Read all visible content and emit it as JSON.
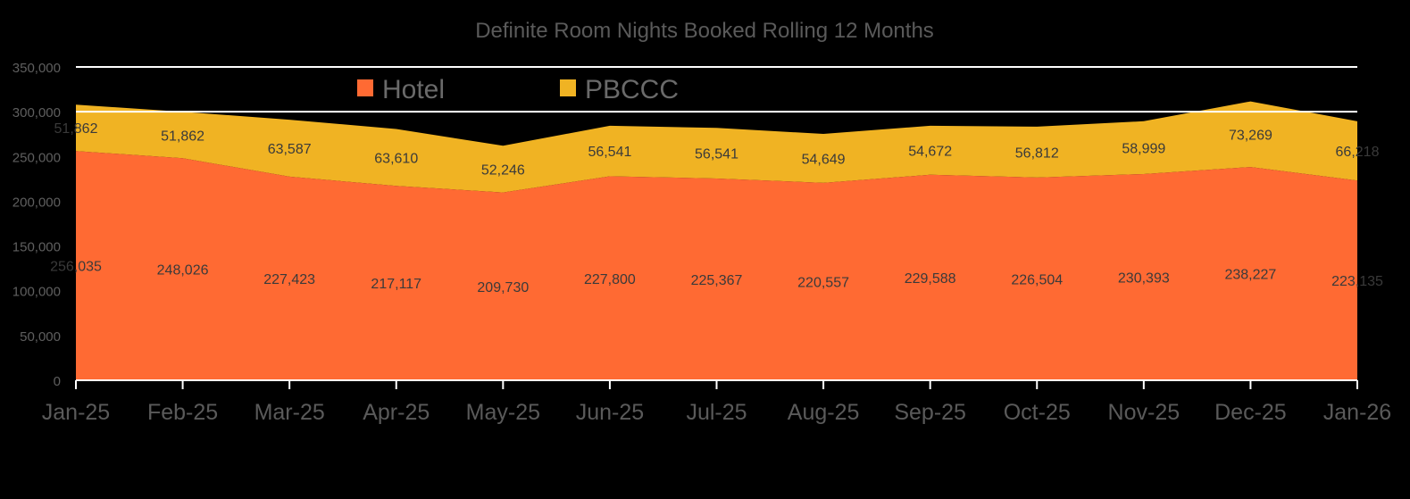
{
  "chart_data": {
    "type": "area",
    "stacked": true,
    "title": "Definite Room Nights Booked  Rolling  12 Months",
    "xlabel": "",
    "ylabel": "",
    "categories": [
      "Jan-25",
      "Feb-25",
      "Mar-25",
      "Apr-25",
      "May-25",
      "Jun-25",
      "Jul-25",
      "Aug-25",
      "Sep-25",
      "Oct-25",
      "Nov-25",
      "Dec-25",
      "Jan-26"
    ],
    "series": [
      {
        "name": "Hotel",
        "color": "#ff6a33",
        "values": [
          256035,
          248026,
          227423,
          217117,
          209730,
          227800,
          225367,
          220557,
          229588,
          226504,
          230393,
          238227,
          223135
        ],
        "labels": [
          "256,035",
          "248,026",
          "227,423",
          "217,117",
          "209,730",
          "227,800",
          "225,367",
          "220,557",
          "229,588",
          "226,504",
          "230,393",
          "238,227",
          "223,135"
        ]
      },
      {
        "name": "PBCCC",
        "color": "#f0b323",
        "values": [
          51862,
          51862,
          63587,
          63610,
          52246,
          56541,
          56541,
          54649,
          54672,
          56812,
          58999,
          73269,
          66218
        ],
        "labels": [
          "51,862",
          "51,862",
          "63,587",
          "63,610",
          "52,246",
          "56,541",
          "56,541",
          "54,649",
          "54,672",
          "56,812",
          "58,999",
          "73,269",
          "66,218"
        ]
      }
    ],
    "ylim": [
      0,
      350000
    ],
    "yticks": [
      0,
      50000,
      100000,
      150000,
      200000,
      250000,
      300000,
      350000
    ],
    "ytick_labels": [
      "0",
      "50,000",
      "100,000",
      "150,000",
      "200,000",
      "250,000",
      "300,000",
      "350,000"
    ],
    "gridlines": [
      300000,
      350000
    ],
    "grid": true,
    "legend_position": "top-center"
  }
}
